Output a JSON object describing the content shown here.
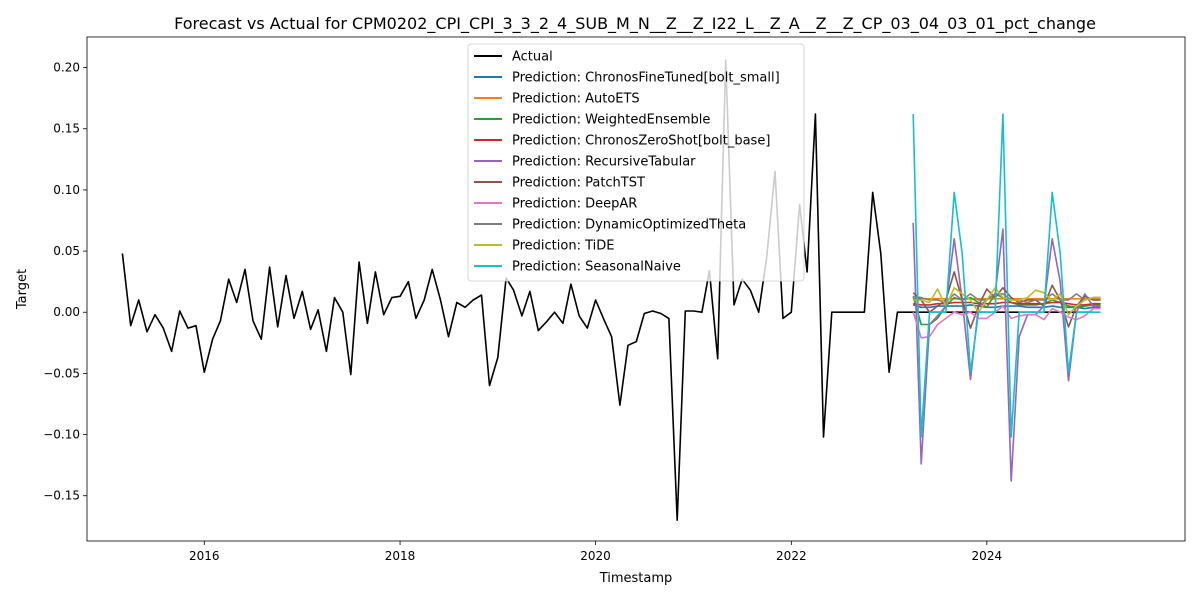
{
  "chart_data": {
    "type": "line",
    "title": "Forecast vs Actual for CPM0202_CPI_CPI_3_3_2_4_SUB_M_N__Z__Z_I22_L__Z_A__Z__Z_CP_03_04_03_01_pct_change",
    "xlabel": "Timestamp",
    "ylabel": "Target",
    "xlim": [
      "2014-10-20",
      "2026-01-10"
    ],
    "ylim": [
      -0.187,
      0.225
    ],
    "x_ticks": [
      "2016",
      "2018",
      "2020",
      "2022",
      "2024"
    ],
    "y_ticks": [
      "0.20",
      "0.15",
      "0.10",
      "0.05",
      "0.00",
      "−0.05",
      "−0.10",
      "−0.15"
    ],
    "legend_position": "top-center",
    "grid": false,
    "series": [
      {
        "name": "Actual",
        "color": "#000000",
        "start": "2015-03",
        "values": [
          0.048,
          -0.011,
          0.01,
          -0.016,
          -0.002,
          -0.013,
          -0.032,
          0.001,
          -0.013,
          -0.011,
          -0.049,
          -0.022,
          -0.007,
          0.027,
          0.008,
          0.035,
          -0.007,
          -0.022,
          0.037,
          -0.012,
          0.03,
          -0.005,
          0.017,
          -0.014,
          0.002,
          -0.032,
          0.012,
          0.0,
          -0.051,
          0.041,
          -0.009,
          0.033,
          -0.002,
          0.012,
          0.013,
          0.025,
          -0.005,
          0.01,
          0.035,
          0.01,
          -0.02,
          0.008,
          0.004,
          0.01,
          0.014,
          -0.06,
          -0.037,
          0.028,
          0.018,
          -0.003,
          0.017,
          -0.015,
          -0.008,
          0.0,
          -0.009,
          0.023,
          -0.003,
          -0.013,
          0.01,
          -0.006,
          -0.02,
          -0.076,
          -0.027,
          -0.024,
          -0.001,
          0.001,
          -0.001,
          -0.005,
          -0.17,
          0.001,
          0.001,
          0.0,
          0.034,
          -0.038,
          0.206,
          0.006,
          0.027,
          0.018,
          0.0,
          0.045,
          0.115,
          -0.005,
          0.0,
          0.088,
          0.033,
          0.162,
          -0.102,
          0.0,
          0.0,
          0.0,
          0.0,
          0.0,
          0.098,
          0.048,
          -0.049,
          0.0,
          0.0,
          0.0,
          0.0,
          0.0,
          0.0,
          0.0,
          0.0,
          0.0,
          0.0,
          0.0,
          0.0,
          0.0,
          0.0,
          0.0,
          0.0,
          0.0,
          0.0,
          0.0,
          0.0,
          0.0,
          0.0,
          0.0,
          0.0,
          0.0
        ]
      },
      {
        "name": "Prediction: ChronosFineTuned[bolt_small]",
        "color": "#1f77b4",
        "start": "2023-04",
        "values": [
          0.006,
          0.004,
          0.004,
          0.005,
          0.005,
          0.005,
          0.005,
          0.006,
          0.005,
          0.004,
          0.004,
          0.005,
          0.005,
          0.005,
          0.004,
          0.004,
          0.004,
          0.005,
          0.004,
          0.004,
          0.004,
          0.003,
          0.004,
          0.004
        ]
      },
      {
        "name": "Prediction: AutoETS",
        "color": "#ff7f0e",
        "start": "2023-04",
        "values": [
          0.011,
          0.011,
          0.011,
          0.011,
          0.011,
          0.011,
          0.011,
          0.011,
          0.011,
          0.011,
          0.011,
          0.011,
          0.011,
          0.011,
          0.011,
          0.011,
          0.011,
          0.011,
          0.011,
          0.011,
          0.011,
          0.011,
          0.011,
          0.011
        ]
      },
      {
        "name": "Prediction: WeightedEnsemble",
        "color": "#2ca02c",
        "start": "2023-04",
        "values": [
          0.013,
          -0.01,
          -0.01,
          -0.005,
          0.005,
          0.012,
          0.01,
          0.012,
          0.008,
          0.004,
          0.015,
          0.012,
          0.008,
          0.006,
          0.006,
          0.006,
          0.007,
          0.01,
          0.008,
          0.005,
          0.004,
          0.005,
          0.006,
          0.006
        ]
      },
      {
        "name": "Prediction: ChronosZeroShot[bolt_base]",
        "color": "#d62728",
        "start": "2023-04",
        "values": [
          0.007,
          0.006,
          0.006,
          0.007,
          0.007,
          0.008,
          0.008,
          0.008,
          0.007,
          0.007,
          0.007,
          0.008,
          0.008,
          0.007,
          0.007,
          0.007,
          0.007,
          0.008,
          0.008,
          0.007,
          0.006,
          0.006,
          0.007,
          0.007
        ]
      },
      {
        "name": "Prediction: RecursiveTabular",
        "color": "#9467bd",
        "start": "2023-04",
        "values": [
          0.073,
          -0.124,
          -0.01,
          -0.003,
          0.005,
          0.06,
          0.01,
          -0.055,
          0.005,
          0.01,
          0.015,
          0.068,
          -0.138,
          -0.02,
          -0.002,
          -0.002,
          0.005,
          0.06,
          0.025,
          -0.056,
          0.0,
          0.015,
          0.005,
          0.005
        ]
      },
      {
        "name": "Prediction: PatchTST",
        "color": "#8c564b",
        "start": "2023-04",
        "values": [
          0.016,
          0.01,
          0.0,
          0.005,
          0.01,
          0.033,
          0.01,
          -0.013,
          0.005,
          0.019,
          0.012,
          0.02,
          0.012,
          0.008,
          0.01,
          0.01,
          0.005,
          0.022,
          0.01,
          -0.012,
          0.005,
          0.013,
          0.01,
          0.01
        ]
      },
      {
        "name": "Prediction: DeepAR",
        "color": "#e377c2",
        "start": "2023-04",
        "values": [
          0.0,
          -0.021,
          -0.02,
          -0.01,
          -0.005,
          0.0,
          -0.002,
          0.0,
          -0.005,
          -0.005,
          0.0,
          0.005,
          -0.005,
          -0.003,
          -0.002,
          -0.002,
          -0.006,
          0.003,
          0.0,
          -0.004,
          -0.006,
          -0.003,
          0.003,
          0.003
        ]
      },
      {
        "name": "Prediction: DynamicOptimizedTheta",
        "color": "#7f7f7f",
        "start": "2023-04",
        "values": [
          0.013,
          0.012,
          0.01,
          0.01,
          0.008,
          0.015,
          0.01,
          0.015,
          0.01,
          0.01,
          0.015,
          0.015,
          0.01,
          0.01,
          0.008,
          0.01,
          0.01,
          0.015,
          0.01,
          0.01,
          0.015,
          0.01,
          0.012,
          0.012
        ]
      },
      {
        "name": "Prediction: TiDE",
        "color": "#bcbd22",
        "start": "2023-04",
        "values": [
          0.01,
          0.01,
          0.008,
          0.019,
          0.005,
          0.02,
          0.015,
          0.01,
          0.0,
          0.01,
          0.02,
          0.012,
          0.01,
          0.01,
          0.012,
          0.018,
          0.016,
          0.01,
          0.015,
          -0.002,
          0.005,
          0.01,
          0.012,
          0.012
        ]
      },
      {
        "name": "Prediction: SeasonalNaive",
        "color": "#17becf",
        "start": "2023-04",
        "values": [
          0.162,
          -0.102,
          0.0,
          0.0,
          0.0,
          0.098,
          0.048,
          -0.049,
          0.0,
          0.0,
          0.0,
          0.162,
          -0.102,
          0.0,
          0.0,
          0.0,
          0.0,
          0.098,
          0.048,
          -0.049,
          0.0,
          0.0,
          0.0,
          0.0
        ]
      }
    ]
  }
}
